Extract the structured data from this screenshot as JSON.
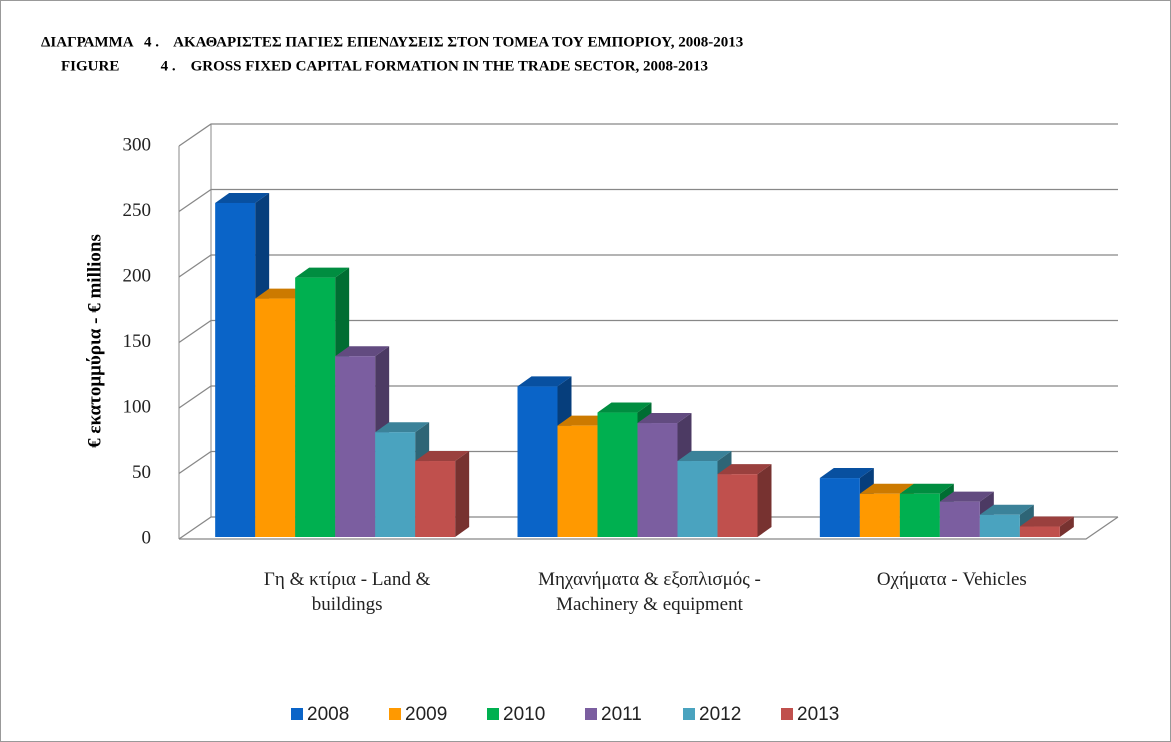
{
  "chart_data": {
    "type": "bar3d",
    "title": "ΔΙΑΓΡΑΜΜΑ   4 .    ΑΚΑΘΑΡΙΣΤΕΣ ΠΑΓΙΕΣ ΕΠΕΝΔΥΣΕΙΣ ΣΤΟΝ ΤΟΜΕΑ ΤΟΥ ΕΜΠΟΡΙΟΥ, 2008-2013",
    "subtitle": "FIGURE           4 .    GROSS FIXED CAPITAL FORMATION IN THE TRADE SECTOR, 2008-2013",
    "y_label": "€ εκατομμύρια - € millions",
    "categories": [
      "Γη & κτίρια - Land & buildings",
      "Μηχανήματα & εξοπλισμός - Machinery & equipment",
      "Οχήματα - Vehicles"
    ],
    "series": [
      {
        "name": "2008",
        "color": "#0a64c8",
        "values": [
          255,
          115,
          45
        ]
      },
      {
        "name": "2009",
        "color": "#ff9900",
        "values": [
          182,
          85,
          33
        ]
      },
      {
        "name": "2010",
        "color": "#00b050",
        "values": [
          198,
          95,
          33
        ]
      },
      {
        "name": "2011",
        "color": "#7b5ea0",
        "values": [
          138,
          87,
          27
        ]
      },
      {
        "name": "2012",
        "color": "#4aa3bf",
        "values": [
          80,
          58,
          17
        ]
      },
      {
        "name": "2013",
        "color": "#c0504d",
        "values": [
          58,
          48,
          8
        ]
      }
    ],
    "ylim": [
      0,
      300
    ],
    "yticks": [
      0,
      50,
      100,
      150,
      200,
      250,
      300
    ],
    "grid": true,
    "legend": "bottom"
  }
}
